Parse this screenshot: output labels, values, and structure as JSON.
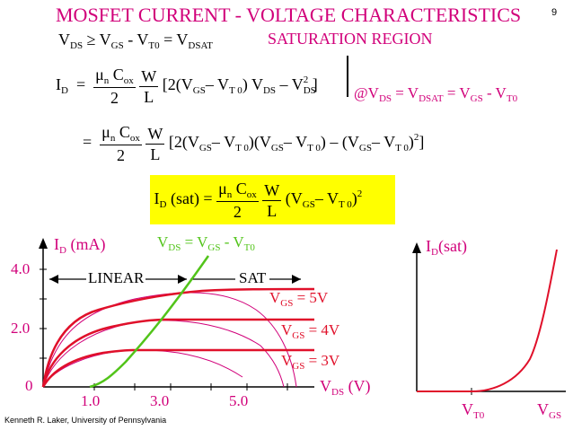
{
  "title": "MOSFET CURRENT - VOLTAGE CHARACTERISTICS",
  "page_number": "9",
  "condition": {
    "lhs": "V",
    "lhs_sub": "DS",
    "op": " ≥ V",
    "gs_sub": "GS",
    "minus": " - V",
    "t0_sub": "T0",
    "eq": " = V",
    "dsat_sub": "DSAT"
  },
  "region_label": "SATURATION REGION",
  "eq1": {
    "lhs": "I",
    "lhs_sub": "D",
    "eq": " = ",
    "num1": "μn Cox",
    "den1": "2",
    "num2": "W",
    "den2": "L",
    "body": "[2(V_GS – V_T0) V_DS – V_DS²]"
  },
  "eval_at": "@V_DS = V_DSAT = V_GS - V_T0",
  "eq2": {
    "eq": "= ",
    "body": "[2(V_GS – V_T0)(V_GS – V_T0) – (V_GS – V_T0)²]"
  },
  "eq3": {
    "lhs": "I_D(sat) = ",
    "body": "(V_GS – V_T0)²"
  },
  "left_plot": {
    "y_axis_label": "I_D (mA)",
    "x_axis_label": "V_DS (V)",
    "boundary_label": "V_DS = V_GS - V_T0",
    "linear_label": "LINEAR",
    "sat_label": "SAT",
    "y_ticks": [
      "4.0",
      "2.0",
      "0"
    ],
    "x_ticks": [
      "1.0",
      "3.0",
      "5.0"
    ],
    "curve_labels": [
      "V_GS = 5V",
      "V_GS = 4V",
      "V_GS = 3V"
    ]
  },
  "right_plot": {
    "y_axis_label": "I_D(sat)",
    "x_label_vt": "V_T0",
    "x_label_vgs": "V_GS"
  },
  "credit": "Kenneth R. Laker, University of Pennsylvania",
  "colors": {
    "title": "#d1007a",
    "highlight": "#ffff00",
    "curves": "#e0102a",
    "boundary": "#52c41a",
    "magenta": "#d1007a"
  }
}
